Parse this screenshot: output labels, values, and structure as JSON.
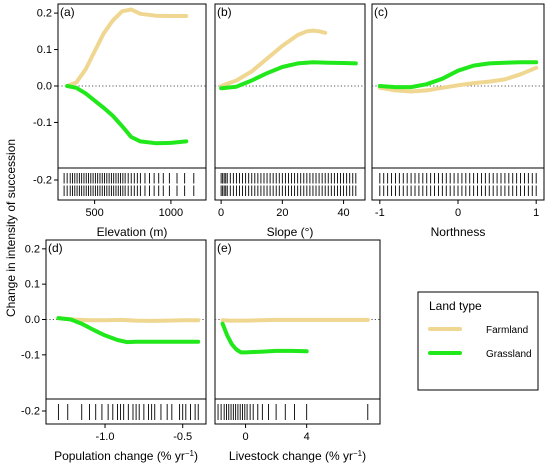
{
  "figure": {
    "ylabel": "Change in intensity of succession",
    "legend": {
      "title": "Land type",
      "items": [
        {
          "name": "Farmland",
          "color": "#EFD791"
        },
        {
          "name": "Grassland",
          "color": "#20E81A"
        }
      ]
    }
  },
  "chart_data": [
    {
      "type": "line",
      "panel": "(a)",
      "xlabel": "Elevation (m)",
      "xlim": [
        260,
        1230
      ],
      "ylim": [
        -0.225,
        0.225
      ],
      "xticks": [
        500,
        1000
      ],
      "yticks": [
        -0.2,
        -0.1,
        0.0,
        0.1,
        0.2
      ],
      "yticklabels": [
        "-0.2",
        "-0.1",
        "0.0",
        "0.1",
        "0.2"
      ],
      "series": [
        {
          "name": "Farmland",
          "x": [
            320,
            380,
            440,
            500,
            560,
            620,
            680,
            740,
            800,
            900,
            1000,
            1100
          ],
          "y": [
            0.0,
            0.01,
            0.045,
            0.095,
            0.145,
            0.18,
            0.205,
            0.21,
            0.198,
            0.193,
            0.192,
            0.192
          ]
        },
        {
          "name": "Grassland",
          "x": [
            320,
            380,
            440,
            500,
            560,
            620,
            680,
            740,
            800,
            900,
            1000,
            1100
          ],
          "y": [
            0.0,
            -0.005,
            -0.02,
            -0.04,
            -0.06,
            -0.082,
            -0.11,
            -0.14,
            -0.152,
            -0.157,
            -0.156,
            -0.152
          ]
        }
      ],
      "rug_rows": 2,
      "rug": [
        300,
        320,
        340,
        355,
        370,
        385,
        400,
        415,
        430,
        445,
        460,
        475,
        490,
        505,
        520,
        535,
        550,
        565,
        580,
        595,
        610,
        625,
        640,
        655,
        670,
        685,
        700,
        720,
        740,
        760,
        780,
        800,
        830,
        860,
        890,
        920,
        950,
        990,
        1040,
        1090,
        1150
      ]
    },
    {
      "type": "line",
      "panel": "(b)",
      "xlabel": "Slope (°)",
      "xlim": [
        -2,
        47
      ],
      "ylim": [
        -0.225,
        0.225
      ],
      "xticks": [
        0,
        20,
        40
      ],
      "series": [
        {
          "name": "Farmland",
          "x": [
            0,
            5,
            10,
            15,
            20,
            25,
            28,
            30,
            32,
            34
          ],
          "y": [
            0.0,
            0.015,
            0.04,
            0.075,
            0.11,
            0.14,
            0.15,
            0.152,
            0.15,
            0.146
          ]
        },
        {
          "name": "Grassland",
          "x": [
            0,
            5,
            10,
            15,
            20,
            25,
            30,
            35,
            40,
            44
          ],
          "y": [
            -0.006,
            -0.002,
            0.015,
            0.035,
            0.052,
            0.062,
            0.065,
            0.064,
            0.063,
            0.062
          ]
        }
      ],
      "rug_rows": 2,
      "rug": [
        0,
        0.5,
        1,
        1.5,
        2,
        3,
        4,
        5,
        6,
        7,
        8,
        9,
        10,
        11,
        12,
        13,
        14,
        15,
        16,
        17,
        18,
        19,
        20,
        21,
        22,
        23,
        24,
        25,
        26,
        27,
        28,
        29,
        30,
        31,
        32,
        33,
        34,
        35,
        36,
        37,
        38,
        39,
        40,
        41,
        42,
        43,
        44
      ]
    },
    {
      "type": "line",
      "panel": "(c)",
      "xlabel": "Northness",
      "xlim": [
        -1.1,
        1.1
      ],
      "ylim": [
        -0.225,
        0.225
      ],
      "xticks": [
        -1,
        0,
        1
      ],
      "series": [
        {
          "name": "Farmland",
          "x": [
            -1,
            -0.8,
            -0.6,
            -0.4,
            -0.2,
            0,
            0.2,
            0.4,
            0.6,
            0.8,
            1
          ],
          "y": [
            -0.005,
            -0.012,
            -0.015,
            -0.012,
            -0.005,
            0.002,
            0.008,
            0.012,
            0.018,
            0.032,
            0.05
          ]
        },
        {
          "name": "Grassland",
          "x": [
            -1,
            -0.8,
            -0.6,
            -0.4,
            -0.2,
            0,
            0.2,
            0.4,
            0.6,
            0.8,
            1
          ],
          "y": [
            0.0,
            -0.003,
            -0.003,
            0.005,
            0.02,
            0.042,
            0.056,
            0.062,
            0.064,
            0.065,
            0.065
          ]
        }
      ],
      "rug_rows": 2,
      "rug": [
        -1,
        -0.95,
        -0.9,
        -0.85,
        -0.8,
        -0.75,
        -0.7,
        -0.65,
        -0.6,
        -0.55,
        -0.5,
        -0.45,
        -0.4,
        -0.35,
        -0.3,
        -0.25,
        -0.2,
        -0.15,
        -0.1,
        -0.05,
        0,
        0.05,
        0.1,
        0.15,
        0.2,
        0.25,
        0.3,
        0.35,
        0.4,
        0.45,
        0.5,
        0.55,
        0.6,
        0.65,
        0.7,
        0.75,
        0.8,
        0.85,
        0.9,
        0.95,
        1
      ]
    },
    {
      "type": "line",
      "panel": "(d)",
      "xlabel": "Population change (% yr",
      "xlabel_sup": "−1",
      "xlabel_end": ")",
      "xlim": [
        -1.38,
        -0.35
      ],
      "ylim": [
        -0.225,
        0.225
      ],
      "xticks": [
        -1.0,
        -0.5
      ],
      "xticklabels": [
        "-1.0",
        "-0.5"
      ],
      "yticks": [
        -0.2,
        -0.1,
        0.0,
        0.1,
        0.2
      ],
      "yticklabels": [
        "-0.2",
        "-0.1",
        "0.0",
        "0.1",
        "0.2"
      ],
      "series": [
        {
          "name": "Farmland",
          "x": [
            -1.3,
            -1.2,
            -1.1,
            -1.0,
            -0.9,
            -0.8,
            -0.7,
            -0.6,
            -0.5,
            -0.4
          ],
          "y": [
            0.004,
            0.0,
            -0.002,
            -0.002,
            -0.001,
            -0.003,
            -0.004,
            -0.003,
            -0.002,
            -0.002
          ]
        },
        {
          "name": "Grassland",
          "x": [
            -1.3,
            -1.22,
            -1.15,
            -1.08,
            -1.0,
            -0.92,
            -0.86,
            -0.8,
            -0.7,
            -0.6,
            -0.5,
            -0.4
          ],
          "y": [
            0.004,
            0.0,
            -0.012,
            -0.028,
            -0.045,
            -0.058,
            -0.064,
            -0.063,
            -0.063,
            -0.063,
            -0.063,
            -0.063
          ]
        }
      ],
      "rug_rows": 1,
      "rug": [
        -1.3,
        -1.24,
        -1.15,
        -1.1,
        -1.06,
        -1.02,
        -0.98,
        -0.95,
        -0.92,
        -0.9,
        -0.88,
        -0.85,
        -0.82,
        -0.8,
        -0.78,
        -0.75,
        -0.72,
        -0.7,
        -0.68,
        -0.64,
        -0.6,
        -0.57,
        -0.52,
        -0.5,
        -0.48,
        -0.45,
        -0.42,
        -0.4
      ]
    },
    {
      "type": "line",
      "panel": "(e)",
      "xlabel": "Livestock change (% yr",
      "xlabel_sup": "−1",
      "xlabel_end": ")",
      "xlim": [
        -2.0,
        8.8
      ],
      "ylim": [
        -0.225,
        0.225
      ],
      "xticks": [
        0,
        4
      ],
      "series": [
        {
          "name": "Farmland",
          "x": [
            -1.5,
            -1,
            0,
            1,
            2,
            3,
            4,
            5,
            6,
            7,
            8
          ],
          "y": [
            -0.002,
            -0.003,
            -0.003,
            -0.002,
            -0.001,
            -0.001,
            -0.001,
            -0.001,
            -0.001,
            -0.001,
            -0.001
          ]
        },
        {
          "name": "Grassland",
          "x": [
            -1.5,
            -1.2,
            -0.9,
            -0.6,
            -0.3,
            0,
            0.5,
            1,
            2,
            3,
            4
          ],
          "y": [
            -0.012,
            -0.045,
            -0.07,
            -0.085,
            -0.093,
            -0.093,
            -0.092,
            -0.091,
            -0.089,
            -0.089,
            -0.09
          ]
        }
      ],
      "rug_rows": 1,
      "rug": [
        -1.8,
        -1.6,
        -1.4,
        -1.25,
        -1.1,
        -0.95,
        -0.8,
        -0.65,
        -0.5,
        -0.35,
        -0.2,
        -0.05,
        0.1,
        0.3,
        0.5,
        0.8,
        1.1,
        1.5,
        2.0,
        2.6,
        3.2,
        4.0,
        8.0
      ]
    }
  ]
}
